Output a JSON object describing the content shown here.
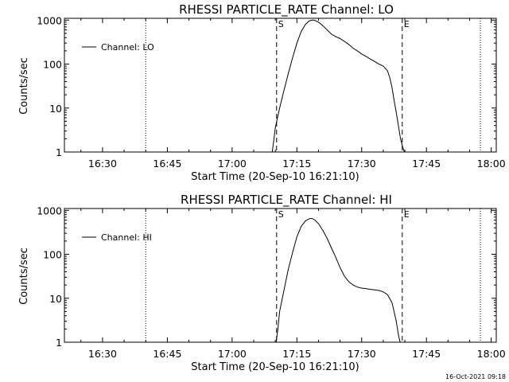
{
  "timestamp": "16-Oct-2021 09:18",
  "chart_data": [
    {
      "type": "line",
      "title": "RHESSI PARTICLE_RATE Channel: LO",
      "xlabel": "Start Time (20-Sep-10 16:21:10)",
      "ylabel": "Counts/sec",
      "x_ticks": [
        "16:30",
        "16:45",
        "17:00",
        "17:15",
        "17:30",
        "17:45",
        "18:00"
      ],
      "x_tick_minutes": [
        30,
        45,
        60,
        75,
        90,
        105,
        120
      ],
      "xlim_minutes": [
        21.17,
        121.17
      ],
      "y_scale": "log",
      "y_ticks": [
        "1",
        "10",
        "100",
        "1000"
      ],
      "y_tick_values": [
        1,
        10,
        100,
        1000
      ],
      "ylim": [
        1,
        1100
      ],
      "legend": {
        "label": "Channel: LO",
        "position": "top-left"
      },
      "markers": [
        {
          "label": "S",
          "minute": 70.3,
          "style": "dashed"
        },
        {
          "label": "E",
          "minute": 99.4,
          "style": "dashed"
        }
      ],
      "dotted_lines_minutes": [
        40.0,
        117.5
      ],
      "series": [
        {
          "x": [
            69.3,
            69.7,
            70.0,
            70.5,
            71.0,
            72.0,
            73.0,
            74.0,
            75.0,
            76.0,
            77.0,
            77.8,
            78.5,
            79.0,
            80.0,
            81.0,
            82.0,
            83.0,
            84.0,
            85.0,
            86.0,
            87.0,
            88.0,
            89.0,
            90.0,
            91.0,
            92.0,
            93.0,
            94.0,
            95.0,
            96.0,
            96.5,
            97.0,
            97.5,
            98.0,
            98.5,
            99.0,
            99.5,
            99.9
          ],
          "y": [
            1,
            2,
            3.5,
            6,
            10,
            25,
            60,
            140,
            300,
            550,
            800,
            950,
            1000,
            1000,
            900,
            750,
            600,
            480,
            420,
            380,
            330,
            280,
            230,
            200,
            170,
            150,
            130,
            115,
            100,
            90,
            70,
            50,
            30,
            15,
            8,
            4,
            2,
            1.3,
            1
          ]
        }
      ]
    },
    {
      "type": "line",
      "title": "RHESSI PARTICLE_RATE Channel: HI",
      "xlabel": "Start Time (20-Sep-10 16:21:10)",
      "ylabel": "Counts/sec",
      "x_ticks": [
        "16:30",
        "16:45",
        "17:00",
        "17:15",
        "17:30",
        "17:45",
        "18:00"
      ],
      "x_tick_minutes": [
        30,
        45,
        60,
        75,
        90,
        105,
        120
      ],
      "xlim_minutes": [
        21.17,
        121.17
      ],
      "y_scale": "log",
      "y_ticks": [
        "1",
        "10",
        "100",
        "1000"
      ],
      "y_tick_values": [
        1,
        10,
        100,
        1000
      ],
      "ylim": [
        1,
        1100
      ],
      "legend": {
        "label": "Channel: HI",
        "position": "top-left"
      },
      "markers": [
        {
          "label": "S",
          "minute": 70.3,
          "style": "dashed"
        },
        {
          "label": "E",
          "minute": 99.4,
          "style": "dashed"
        }
      ],
      "dotted_lines_minutes": [
        40.0,
        117.5
      ],
      "series": [
        {
          "x": [
            70.2,
            70.6,
            71.0,
            72.0,
            73.0,
            74.0,
            75.0,
            76.0,
            77.0,
            78.0,
            78.5,
            79.0,
            80.0,
            81.0,
            82.0,
            83.0,
            84.0,
            85.0,
            86.0,
            87.0,
            88.0,
            89.0,
            90.0,
            91.0,
            92.0,
            93.0,
            94.0,
            95.0,
            96.0,
            97.0,
            97.5,
            98.0,
            98.5,
            98.9
          ],
          "y": [
            1,
            2,
            5,
            15,
            45,
            110,
            250,
            430,
            580,
            650,
            650,
            620,
            500,
            350,
            230,
            140,
            85,
            50,
            32,
            24,
            20,
            18,
            17,
            16.5,
            16,
            15.5,
            15,
            14,
            12,
            8,
            5,
            3,
            1.5,
            1
          ]
        }
      ]
    }
  ]
}
